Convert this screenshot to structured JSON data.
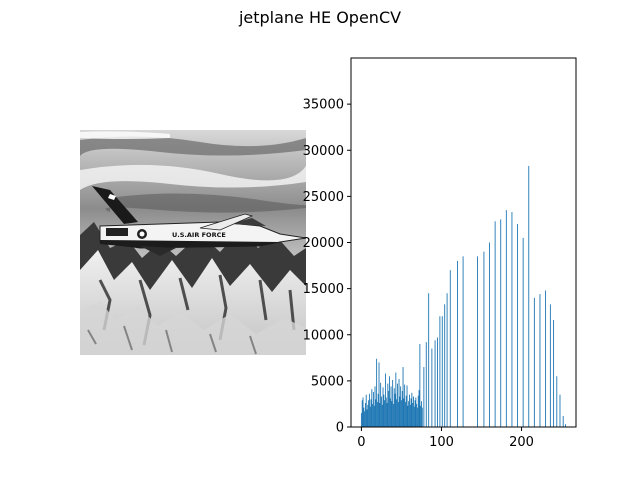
{
  "figure": {
    "title": "jetplane HE OpenCV"
  },
  "image_panel": {
    "description_icon": "jetplane-photo",
    "aircraft_text": "U.S.AIR FORCE"
  },
  "chart_data": {
    "type": "bar",
    "title": "",
    "xlabel": "",
    "ylabel": "",
    "xlim": [
      -13,
      268
    ],
    "ylim": [
      0,
      40000
    ],
    "xticks": [
      0,
      100,
      200
    ],
    "xtick_labels": [
      "0",
      "100",
      "200"
    ],
    "yticks": [
      0,
      5000,
      10000,
      15000,
      20000,
      25000,
      30000,
      35000
    ],
    "ytick_labels": [
      "0",
      "5000",
      "10000",
      "15000",
      "20000",
      "25000",
      "30000",
      "35000"
    ],
    "bar_color": "#1f77b4",
    "x": [
      0,
      1,
      2,
      3,
      4,
      5,
      6,
      7,
      8,
      9,
      10,
      11,
      12,
      13,
      14,
      15,
      16,
      17,
      18,
      19,
      20,
      21,
      22,
      23,
      24,
      25,
      26,
      27,
      28,
      29,
      30,
      31,
      32,
      33,
      34,
      35,
      36,
      37,
      38,
      39,
      40,
      41,
      42,
      43,
      44,
      45,
      46,
      47,
      48,
      49,
      50,
      51,
      52,
      53,
      54,
      55,
      56,
      57,
      58,
      59,
      60,
      61,
      62,
      63,
      64,
      65,
      66,
      67,
      68,
      69,
      70,
      71,
      72,
      73,
      74,
      75,
      76,
      78,
      81,
      84,
      88,
      92,
      95,
      98,
      101,
      104,
      107,
      111,
      120,
      127,
      145,
      153,
      160,
      167,
      174,
      181,
      188,
      195,
      202,
      209,
      216,
      223,
      230,
      236,
      240,
      244,
      248,
      252,
      255
    ],
    "values": [
      1500,
      2900,
      3200,
      2100,
      1700,
      2600,
      3500,
      1900,
      2400,
      2900,
      3600,
      2200,
      3000,
      4100,
      2500,
      3800,
      2300,
      4400,
      3000,
      7400,
      2700,
      3600,
      7000,
      2600,
      4800,
      3300,
      2400,
      4300,
      3500,
      2900,
      5800,
      3200,
      2600,
      4700,
      3900,
      5500,
      3100,
      4400,
      2800,
      5100,
      2500,
      4200,
      3600,
      5900,
      3000,
      4700,
      2700,
      5200,
      3300,
      4400,
      2900,
      3900,
      6500,
      3100,
      4600,
      2700,
      3400,
      4500,
      2300,
      2800,
      3500,
      2400,
      3100,
      3700,
      2600,
      3300,
      2200,
      2900,
      3200,
      2500,
      2100,
      3400,
      4000,
      9000,
      2300,
      2800,
      2100,
      6500,
      9200,
      14500,
      8500,
      9400,
      9700,
      12000,
      12000,
      13300,
      14500,
      17000,
      18000,
      18500,
      18500,
      19000,
      20000,
      22300,
      22500,
      23500,
      23300,
      22000,
      20500,
      28300,
      14000,
      14400,
      14800,
      13300,
      11600,
      5500,
      3500,
      1200,
      300
    ]
  }
}
